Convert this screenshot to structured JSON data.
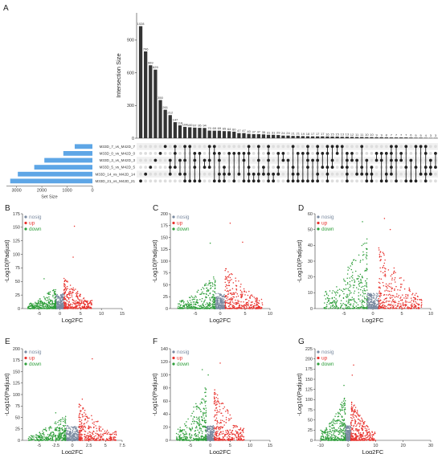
{
  "colors": {
    "bar": "#333333",
    "set_bar": "#5ea6e6",
    "nosig": "#7a8aa0",
    "up": "#e8322d",
    "down": "#2e9e3a",
    "dot_off": "#dddddd",
    "dot_on": "#222222"
  },
  "panel_labels": [
    "A",
    "B",
    "C",
    "D",
    "E",
    "F",
    "G"
  ],
  "chart_data": [
    {
      "panel": "A",
      "type": "bar",
      "subtype": "upset",
      "ylabel": "Intersection Size",
      "yticks": [
        0,
        300,
        600,
        900
      ],
      "ylim": [
        0,
        1150
      ],
      "values": [
        1028,
        796,
        669,
        629,
        350,
        261,
        212,
        147,
        118,
        104,
        100,
        97,
        95,
        94,
        70,
        69,
        69,
        65,
        64,
        60,
        47,
        47,
        40,
        37,
        37,
        35,
        31,
        31,
        29,
        24,
        24,
        21,
        21,
        19,
        18,
        17,
        17,
        17,
        16,
        15,
        15,
        13,
        13,
        12,
        11,
        11,
        10,
        10,
        9,
        9,
        8,
        7,
        7,
        7,
        7,
        6,
        5,
        5,
        4,
        3,
        3
      ],
      "value_labels": [
        "1028",
        "796",
        "669",
        "629",
        "350",
        "261",
        "212",
        "147",
        "118",
        "104",
        "100",
        "97",
        "95",
        "94",
        "70",
        "69",
        "69",
        "65",
        "64",
        "60",
        "47",
        "47",
        "40",
        "37",
        "37",
        "35",
        "31",
        "31",
        "29",
        "24",
        "24",
        "21",
        "21",
        "19",
        "18",
        "17",
        "17",
        "17",
        "16",
        "15",
        "15",
        "13",
        "13",
        "12",
        "11",
        "11",
        "10",
        "10",
        "9",
        "9",
        "8",
        "7",
        "7",
        "7",
        "7",
        "6",
        "5",
        "5",
        "4",
        "3",
        "3"
      ],
      "sets": [
        "M33D_7_vs_M42D_7",
        "M33D_0_vs_M42D_0",
        "M33D_3_vs_M42D_3",
        "M33D_5_vs_M42D_5",
        "M33D_14_vs_M42D_14",
        "M33D_21_vs_M42D_21"
      ],
      "set_sizes": [
        700,
        1150,
        1900,
        2300,
        2950,
        3250
      ],
      "set_xlabel": "Set Size",
      "set_ticks": [
        3000,
        2000,
        1000,
        0
      ]
    },
    {
      "panel": "B",
      "type": "scatter",
      "subtype": "volcano",
      "xlabel": "Log2FC",
      "ylabel": "-Log10(Padjust)",
      "xlim": [
        -9,
        15
      ],
      "ylim": [
        0,
        175
      ],
      "xticks": [
        -5,
        0,
        5,
        10,
        15
      ],
      "yticks": [
        0,
        25,
        50,
        75,
        100,
        125,
        150,
        175
      ],
      "legend": [
        "nosig",
        "up",
        "down"
      ],
      "down_max": 40,
      "up_max": 60,
      "outliers": [
        [
          3.5,
          152
        ],
        [
          3.2,
          95
        ],
        [
          -3.8,
          55
        ]
      ]
    },
    {
      "panel": "C",
      "type": "scatter",
      "subtype": "volcano",
      "xlabel": "Log2FC",
      "ylabel": "-Log10(Padjust)",
      "xlim": [
        -10,
        10
      ],
      "ylim": [
        0,
        200
      ],
      "xticks": [
        -5,
        0,
        5,
        10
      ],
      "yticks": [
        0,
        25,
        50,
        75,
        100,
        125,
        150,
        175,
        200
      ],
      "legend": [
        "nosig",
        "up",
        "down"
      ],
      "down_max": 70,
      "up_max": 90,
      "outliers": [
        [
          2.0,
          180
        ],
        [
          -2.0,
          138
        ],
        [
          4.5,
          140
        ]
      ]
    },
    {
      "panel": "D",
      "type": "scatter",
      "subtype": "volcano",
      "xlabel": "Log2FC",
      "ylabel": "-Log10(Padjust)",
      "xlim": [
        -10,
        10
      ],
      "ylim": [
        0,
        60
      ],
      "xticks": [
        -5,
        0,
        5,
        10
      ],
      "yticks": [
        0,
        10,
        20,
        30,
        40,
        50,
        60
      ],
      "legend": [
        "nosig",
        "up",
        "down"
      ],
      "down_max": 45,
      "up_max": 40,
      "outliers": [
        [
          2.0,
          57
        ],
        [
          -1.8,
          55
        ],
        [
          3.0,
          50
        ]
      ]
    },
    {
      "panel": "E",
      "type": "scatter",
      "subtype": "volcano",
      "xlabel": "Log2FC",
      "ylabel": "-Log10(Padjust)",
      "xlim": [
        -7.5,
        7.5
      ],
      "ylim": [
        0,
        200
      ],
      "xticks": [
        -5,
        -2.5,
        0,
        2.5,
        5,
        7.5
      ],
      "yticks": [
        0,
        25,
        50,
        75,
        100,
        125,
        150,
        175,
        200
      ],
      "legend": [
        "nosig",
        "up",
        "down"
      ],
      "down_max": 55,
      "up_max": 80,
      "outliers": [
        [
          3.0,
          178
        ],
        [
          1.5,
          90
        ],
        [
          -2.5,
          60
        ]
      ]
    },
    {
      "panel": "F",
      "type": "scatter",
      "subtype": "volcano",
      "xlabel": "Log2FC",
      "ylabel": "-Log10(Padjust)",
      "xlim": [
        -10,
        15
      ],
      "ylim": [
        0,
        140
      ],
      "xticks": [
        -5,
        0,
        5,
        10,
        15
      ],
      "yticks": [
        0,
        20,
        40,
        60,
        80,
        100,
        120,
        140
      ],
      "legend": [
        "nosig",
        "up",
        "down"
      ],
      "down_max": 85,
      "up_max": 80,
      "outliers": [
        [
          -2.0,
          108
        ],
        [
          2.5,
          118
        ],
        [
          -0.5,
          100
        ]
      ]
    },
    {
      "panel": "G",
      "type": "scatter",
      "subtype": "volcano",
      "xlabel": "Log2FC",
      "ylabel": "-Log10(Padjust)",
      "xlim": [
        -12,
        30
      ],
      "ylim": [
        0,
        225
      ],
      "xticks": [
        -10,
        0,
        10,
        20,
        30
      ],
      "yticks": [
        0,
        25,
        50,
        75,
        100,
        125,
        150,
        175,
        200,
        225
      ],
      "legend": [
        "nosig",
        "up",
        "down"
      ],
      "down_max": 110,
      "up_max": 100,
      "outliers": [
        [
          2.0,
          185
        ],
        [
          1.5,
          160
        ],
        [
          -1.5,
          135
        ]
      ]
    }
  ]
}
